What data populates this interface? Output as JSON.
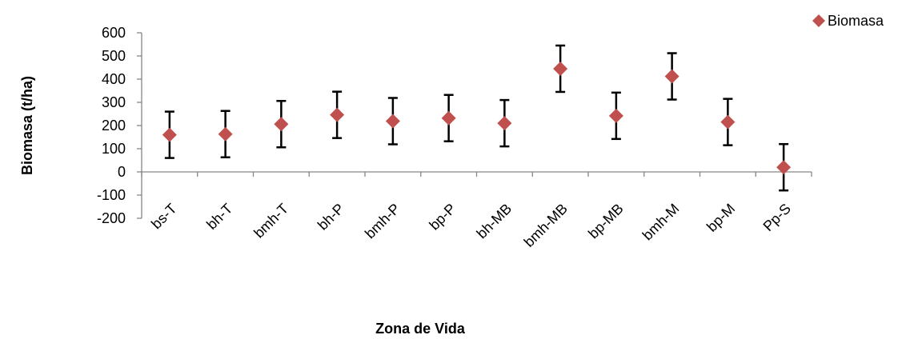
{
  "chart_data": {
    "type": "scatter",
    "title": "",
    "xlabel": "Zona de Vida",
    "ylabel": "Biomasa (t/ha)",
    "ylim": [
      -200,
      600
    ],
    "yticks": [
      600,
      500,
      400,
      300,
      200,
      100,
      0,
      -100,
      -200
    ],
    "categories": [
      "bs-T",
      "bh-T",
      "bmh-T",
      "bh-P",
      "bmh-P",
      "bp-P",
      "bh-MB",
      "bmh-MB",
      "bp-MB",
      "bmh-M",
      "bp-M",
      "Pp-S"
    ],
    "series": [
      {
        "name": "Biomasa",
        "values": [
          160,
          163,
          206,
          246,
          219,
          232,
          210,
          445,
          242,
          412,
          215,
          20
        ],
        "error": 100
      }
    ],
    "marker": "diamond",
    "legend_position": "top-right",
    "grid": false,
    "colors": {
      "marker": "#C0504D",
      "error_bar": "#000000",
      "axis": "#868686"
    }
  }
}
